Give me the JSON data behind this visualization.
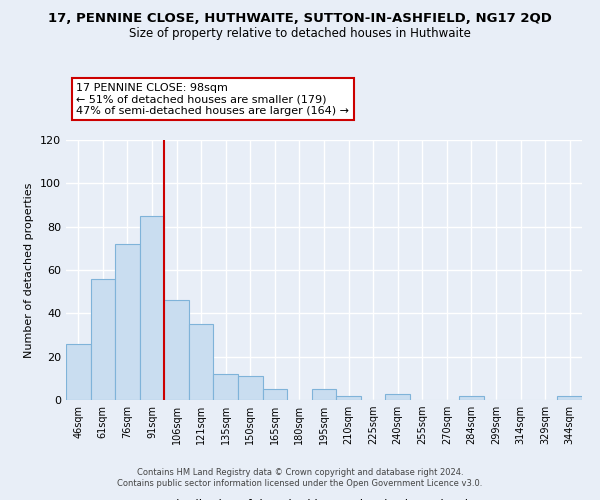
{
  "title": "17, PENNINE CLOSE, HUTHWAITE, SUTTON-IN-ASHFIELD, NG17 2QD",
  "subtitle": "Size of property relative to detached houses in Huthwaite",
  "xlabel": "Distribution of detached houses by size in Huthwaite",
  "ylabel": "Number of detached properties",
  "bar_labels": [
    "46sqm",
    "61sqm",
    "76sqm",
    "91sqm",
    "106sqm",
    "121sqm",
    "135sqm",
    "150sqm",
    "165sqm",
    "180sqm",
    "195sqm",
    "210sqm",
    "225sqm",
    "240sqm",
    "255sqm",
    "270sqm",
    "284sqm",
    "299sqm",
    "314sqm",
    "329sqm",
    "344sqm"
  ],
  "bar_values": [
    26,
    56,
    72,
    85,
    46,
    35,
    12,
    11,
    5,
    0,
    5,
    2,
    0,
    3,
    0,
    0,
    2,
    0,
    0,
    0,
    2
  ],
  "bar_color": "#c9ddf0",
  "bar_edge_color": "#7fb3d9",
  "vline_x": 3.5,
  "vline_color": "#cc0000",
  "annotation_title": "17 PENNINE CLOSE: 98sqm",
  "annotation_line1": "← 51% of detached houses are smaller (179)",
  "annotation_line2": "47% of semi-detached houses are larger (164) →",
  "annotation_box_edge": "#cc0000",
  "ylim": [
    0,
    120
  ],
  "yticks": [
    0,
    20,
    40,
    60,
    80,
    100,
    120
  ],
  "footer1": "Contains HM Land Registry data © Crown copyright and database right 2024.",
  "footer2": "Contains public sector information licensed under the Open Government Licence v3.0.",
  "bg_color": "#e8eef7",
  "plot_bg_color": "#e8eef7",
  "grid_color": "#d0d8e8",
  "title_fontsize": 9.5,
  "subtitle_fontsize": 8.5
}
